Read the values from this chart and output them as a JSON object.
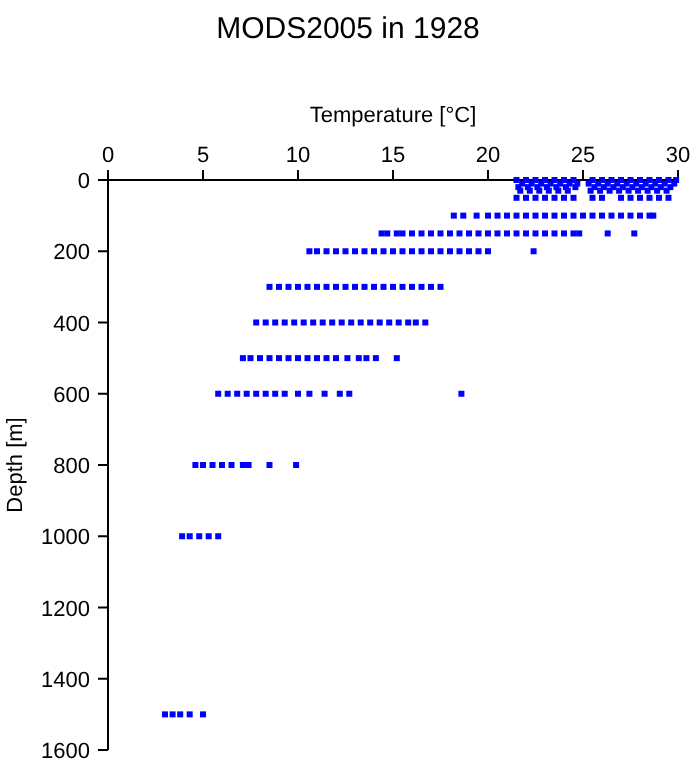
{
  "chart_data": {
    "type": "scatter",
    "title": "MODS2005 in 1928",
    "xlabel": "Temperature [°C]",
    "ylabel": "Depth [m]",
    "xlim": [
      0,
      30
    ],
    "xticks": [
      0,
      5,
      10,
      15,
      20,
      25,
      30
    ],
    "ylim": [
      1600,
      0
    ],
    "yticks": [
      0,
      200,
      400,
      600,
      800,
      1000,
      1200,
      1400,
      1600
    ],
    "grid": false,
    "marker": "square",
    "series": [
      {
        "color": "#0000ff",
        "x": [
          21.5,
          22,
          22.5,
          23,
          23.5,
          24,
          24.5,
          25.5,
          26,
          26.5,
          27,
          27.5,
          28,
          28.5,
          29,
          29.5,
          29.9,
          21.8,
          22.3,
          22.8,
          23.3,
          23.8,
          24.3,
          24.7,
          25.3,
          25.8,
          26.3,
          26.8,
          27.3,
          27.8,
          28.3,
          28.8,
          29.3,
          29.8,
          21.6,
          22.1,
          22.6,
          23.1,
          23.6,
          24.1,
          24.6,
          25.6,
          26.1,
          26.6,
          27.1,
          27.6,
          28.1,
          28.6,
          29.1,
          29.6,
          21.7,
          22.2,
          22.7,
          23.2,
          23.7,
          24.2,
          25.4,
          25.9,
          26.4,
          26.9,
          27.4,
          27.9,
          28.4,
          28.9,
          29.4,
          21.5,
          22,
          22.5,
          23,
          23.5,
          24,
          24.5,
          25.5,
          26,
          27,
          27.5,
          28,
          28.5,
          29,
          29.5,
          18.2,
          18.7,
          19.4,
          20,
          20.5,
          21,
          21.5,
          22,
          22.5,
          23,
          23.5,
          24,
          24.5,
          25,
          25.5,
          26,
          26.5,
          27,
          27.5,
          28,
          28.5,
          28.7,
          14.4,
          14.7,
          15.2,
          15.5,
          16,
          16.5,
          17,
          17.5,
          18,
          18.5,
          19,
          19.5,
          20,
          20.5,
          21,
          21.5,
          22,
          22.5,
          23,
          23.5,
          24,
          24.5,
          24.8,
          26.3,
          27.7,
          10.6,
          11,
          11.5,
          12,
          12.5,
          13,
          13.5,
          14,
          14.5,
          15,
          15.5,
          16,
          16.5,
          17,
          17.5,
          18,
          18.5,
          19,
          19.5,
          20,
          22.4,
          8.5,
          9,
          9.5,
          10,
          10.5,
          11,
          11.5,
          12,
          12.5,
          13,
          13.5,
          14,
          14.5,
          15,
          15.5,
          16,
          16.5,
          17,
          17.5,
          7.8,
          8.3,
          8.8,
          9.3,
          9.8,
          10.3,
          10.8,
          11.3,
          11.8,
          12.3,
          12.8,
          13.3,
          13.8,
          14.3,
          14.8,
          15.3,
          15.8,
          16.2,
          16.7,
          7.1,
          7.5,
          8,
          8.5,
          9,
          9.5,
          10,
          10.5,
          11,
          11.5,
          12,
          12.6,
          13.2,
          13.6,
          14.1,
          15.2,
          5.8,
          6.3,
          6.8,
          7.3,
          7.8,
          8.3,
          8.8,
          9.3,
          10,
          10.6,
          11.4,
          12.2,
          12.7,
          18.6,
          4.6,
          5,
          5.5,
          6,
          6.5,
          7.1,
          7.4,
          8.5,
          9.9,
          3.9,
          4.3,
          4.8,
          5.3,
          5.8,
          3,
          3.4,
          3.8,
          4.3,
          5
        ],
        "values": [
          0,
          0,
          0,
          0,
          0,
          0,
          0,
          0,
          0,
          0,
          0,
          0,
          0,
          0,
          0,
          0,
          0,
          10,
          10,
          10,
          10,
          10,
          10,
          10,
          10,
          10,
          10,
          10,
          10,
          10,
          10,
          10,
          10,
          10,
          20,
          20,
          20,
          20,
          20,
          20,
          20,
          20,
          20,
          20,
          20,
          20,
          20,
          20,
          20,
          20,
          30,
          30,
          30,
          30,
          30,
          30,
          30,
          30,
          30,
          30,
          30,
          30,
          30,
          30,
          30,
          50,
          50,
          50,
          50,
          50,
          50,
          50,
          50,
          50,
          50,
          50,
          50,
          50,
          50,
          50,
          100,
          100,
          100,
          100,
          100,
          100,
          100,
          100,
          100,
          100,
          100,
          100,
          100,
          100,
          100,
          100,
          100,
          100,
          100,
          100,
          100,
          100,
          150,
          150,
          150,
          150,
          150,
          150,
          150,
          150,
          150,
          150,
          150,
          150,
          150,
          150,
          150,
          150,
          150,
          150,
          150,
          150,
          150,
          150,
          150,
          150,
          150,
          200,
          200,
          200,
          200,
          200,
          200,
          200,
          200,
          200,
          200,
          200,
          200,
          200,
          200,
          200,
          200,
          200,
          200,
          200,
          200,
          200,
          300,
          300,
          300,
          300,
          300,
          300,
          300,
          300,
          300,
          300,
          300,
          300,
          300,
          300,
          300,
          300,
          300,
          300,
          300,
          400,
          400,
          400,
          400,
          400,
          400,
          400,
          400,
          400,
          400,
          400,
          400,
          400,
          400,
          400,
          400,
          400,
          400,
          400,
          500,
          500,
          500,
          500,
          500,
          500,
          500,
          500,
          500,
          500,
          500,
          500,
          500,
          500,
          500,
          500,
          600,
          600,
          600,
          600,
          600,
          600,
          600,
          600,
          600,
          600,
          600,
          600,
          600,
          600,
          800,
          800,
          800,
          800,
          800,
          800,
          800,
          800,
          800,
          1000,
          1000,
          1000,
          1000,
          1000,
          1500,
          1500,
          1500,
          1500,
          1500
        ]
      }
    ]
  }
}
